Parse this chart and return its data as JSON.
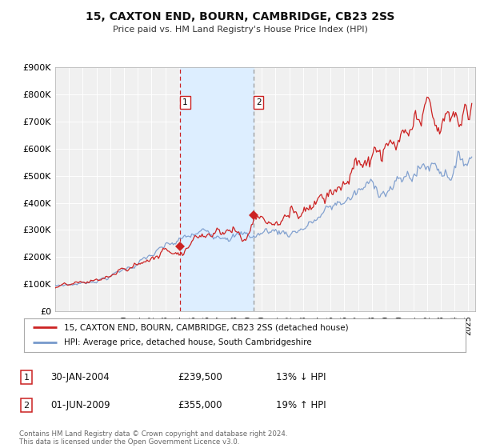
{
  "title": "15, CAXTON END, BOURN, CAMBRIDGE, CB23 2SS",
  "subtitle": "Price paid vs. HM Land Registry's House Price Index (HPI)",
  "ylim": [
    0,
    900000
  ],
  "yticks": [
    0,
    100000,
    200000,
    300000,
    400000,
    500000,
    600000,
    700000,
    800000,
    900000
  ],
  "ytick_labels": [
    "£0",
    "£100K",
    "£200K",
    "£300K",
    "£400K",
    "£500K",
    "£600K",
    "£700K",
    "£800K",
    "£900K"
  ],
  "xlim_start": 1995.0,
  "xlim_end": 2025.5,
  "hpi_color": "#7799cc",
  "price_color": "#cc2222",
  "shaded_region_color": "#ddeeff",
  "sale1_x": 2004.08,
  "sale1_y": 239500,
  "sale2_x": 2009.42,
  "sale2_y": 355000,
  "legend_label1": "15, CAXTON END, BOURN, CAMBRIDGE, CB23 2SS (detached house)",
  "legend_label2": "HPI: Average price, detached house, South Cambridgeshire",
  "table_row1": [
    "1",
    "30-JAN-2004",
    "£239,500",
    "13% ↓ HPI"
  ],
  "table_row2": [
    "2",
    "01-JUN-2009",
    "£355,000",
    "19% ↑ HPI"
  ],
  "footer": "Contains HM Land Registry data © Crown copyright and database right 2024.\nThis data is licensed under the Open Government Licence v3.0.",
  "background_color": "#ffffff",
  "plot_bg_color": "#f0f0f0"
}
